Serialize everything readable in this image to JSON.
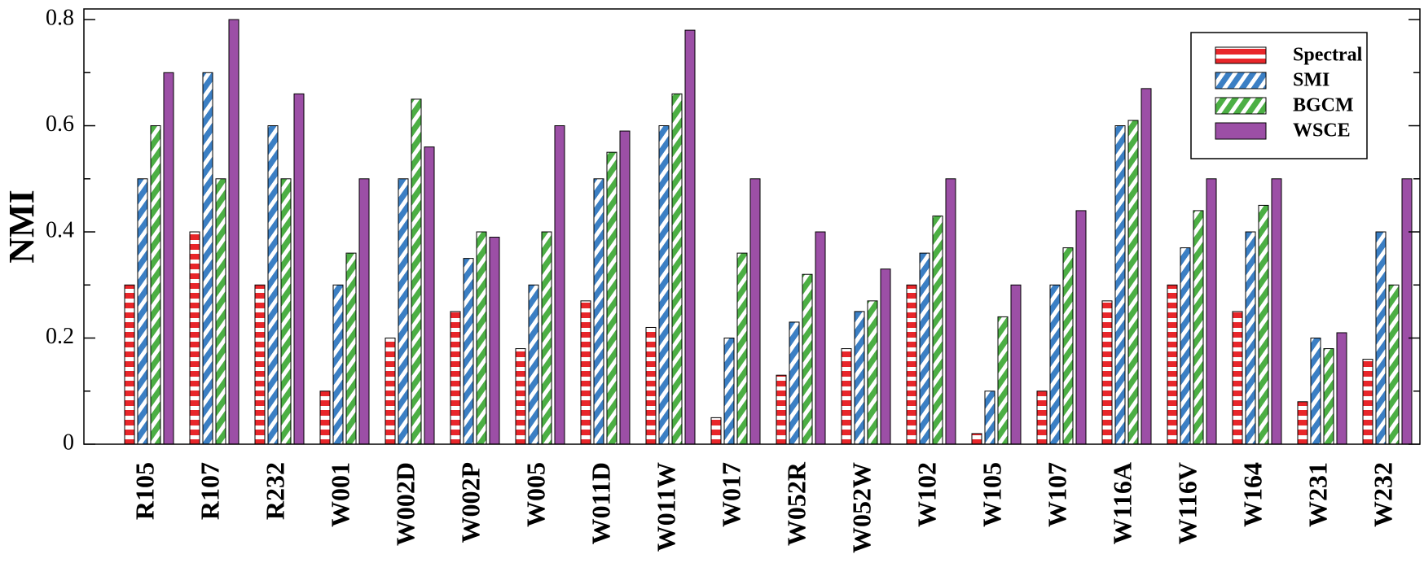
{
  "chart_data": {
    "type": "bar",
    "title": "",
    "xlabel": "",
    "ylabel": "NMI",
    "ylim": [
      0,
      0.82
    ],
    "yticks": [
      0,
      0.2,
      0.4,
      0.6,
      0.8
    ],
    "ytick_labels": [
      "0",
      "0.2",
      "0.4",
      "0.6",
      "0.8"
    ],
    "legend_position": "top-right",
    "grid": false,
    "categories": [
      "R105",
      "R107",
      "R232",
      "W001",
      "W002D",
      "W002P",
      "W005",
      "W011D",
      "W011W",
      "W017",
      "W052R",
      "W052W",
      "W102",
      "W105",
      "W107",
      "W116A",
      "W116V",
      "W164",
      "W231",
      "W232"
    ],
    "series": [
      {
        "name": "Spectral",
        "color": "#e8262a",
        "pattern": "horizontal-stripes",
        "values": [
          0.3,
          0.4,
          0.3,
          0.1,
          0.2,
          0.25,
          0.18,
          0.27,
          0.22,
          0.05,
          0.13,
          0.18,
          0.3,
          0.02,
          0.1,
          0.27,
          0.3,
          0.25,
          0.08,
          0.16
        ]
      },
      {
        "name": "SMI",
        "color": "#3b7fc4",
        "pattern": "diagonal-stripes",
        "values": [
          0.5,
          0.7,
          0.6,
          0.3,
          0.5,
          0.35,
          0.3,
          0.5,
          0.6,
          0.2,
          0.23,
          0.25,
          0.36,
          0.1,
          0.3,
          0.6,
          0.37,
          0.4,
          0.2,
          0.4
        ]
      },
      {
        "name": "BGCM",
        "color": "#4caf44",
        "pattern": "diagonal-stripes",
        "values": [
          0.6,
          0.5,
          0.5,
          0.36,
          0.65,
          0.4,
          0.4,
          0.55,
          0.66,
          0.36,
          0.32,
          0.27,
          0.43,
          0.24,
          0.37,
          0.61,
          0.44,
          0.45,
          0.18,
          0.3
        ]
      },
      {
        "name": "WSCE",
        "color": "#9c4fa6",
        "pattern": "solid",
        "values": [
          0.7,
          0.8,
          0.66,
          0.5,
          0.56,
          0.39,
          0.6,
          0.59,
          0.78,
          0.5,
          0.4,
          0.33,
          0.5,
          0.3,
          0.44,
          0.67,
          0.5,
          0.5,
          0.21,
          0.5
        ]
      }
    ]
  }
}
